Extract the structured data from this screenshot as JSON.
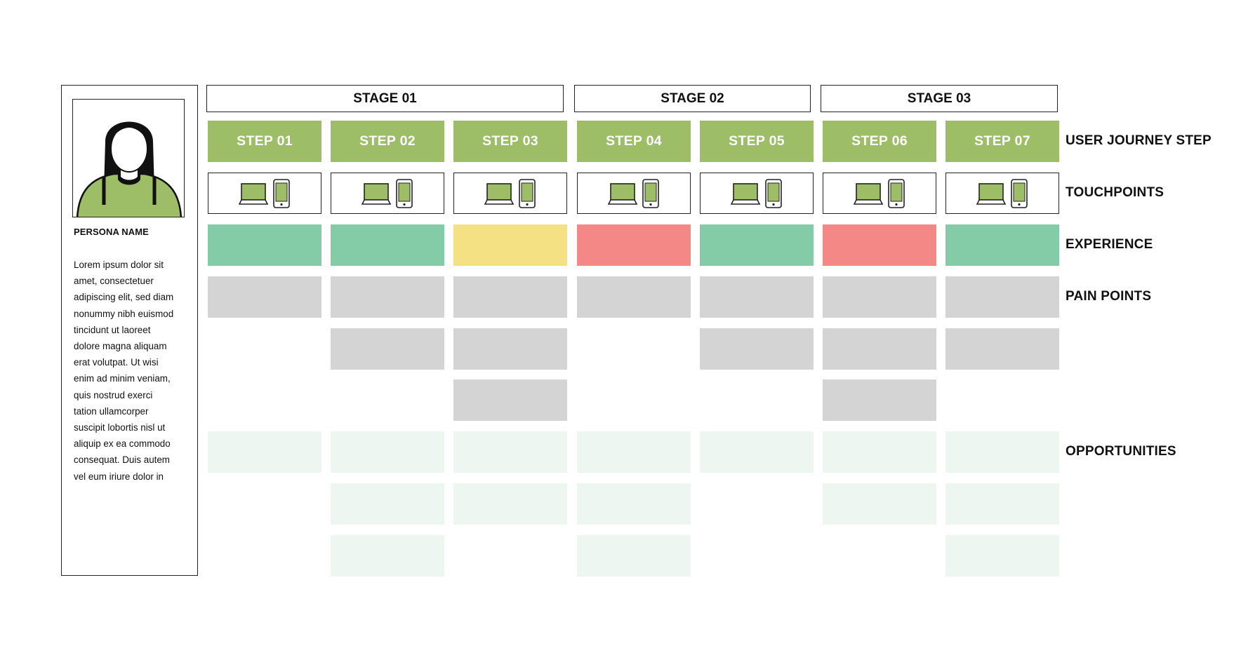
{
  "persona": {
    "name": "PERSONA NAME",
    "description": "Lorem ipsum dolor sit\namet, consectetuer\nadipiscing elit, sed diam\nnonummy nibh euismod\ntincidunt ut laoreet\ndolore magna aliquam\nerat volutpat. Ut wisi\nenim ad minim veniam,\nquis nostrud exerci\ntation ullamcorper\nsuscipit lobortis nisl ut\naliquip ex ea commodo\nconsequat. Duis autem\nvel eum iriure dolor in",
    "avatar_icon": "person-avatar-icon"
  },
  "stages": [
    {
      "label": "STAGE 01",
      "steps": 3
    },
    {
      "label": "STAGE 02",
      "steps": 2
    },
    {
      "label": "STAGE 03",
      "steps": 2
    }
  ],
  "row_labels": {
    "steps": "USER JOURNEY STEP",
    "touchpoints": "TOUCHPOINTS",
    "experience": "EXPERIENCE",
    "pain_points": "PAIN POINTS",
    "opportunities": "OPPORTUNITIES"
  },
  "steps": [
    {
      "label": "STEP 01",
      "touchpoints": [
        "laptop-icon",
        "phone-icon"
      ],
      "experience": "positive",
      "pain_points": 1,
      "opportunities": 1
    },
    {
      "label": "STEP 02",
      "touchpoints": [
        "laptop-icon",
        "phone-icon"
      ],
      "experience": "positive",
      "pain_points": 2,
      "opportunities": 3
    },
    {
      "label": "STEP 03",
      "touchpoints": [
        "laptop-icon",
        "phone-icon"
      ],
      "experience": "neutral",
      "pain_points": 3,
      "opportunities": 2
    },
    {
      "label": "STEP 04",
      "touchpoints": [
        "laptop-icon",
        "phone-icon"
      ],
      "experience": "negative",
      "pain_points": 1,
      "opportunities": 3
    },
    {
      "label": "STEP 05",
      "touchpoints": [
        "laptop-icon",
        "phone-icon"
      ],
      "experience": "positive",
      "pain_points": 2,
      "opportunities": 1
    },
    {
      "label": "STEP 06",
      "touchpoints": [
        "laptop-icon",
        "phone-icon"
      ],
      "experience": "negative",
      "pain_points": 3,
      "opportunities": 2
    },
    {
      "label": "STEP 07",
      "touchpoints": [
        "laptop-icon",
        "phone-icon"
      ],
      "experience": "positive",
      "pain_points": 2,
      "opportunities": 3
    }
  ],
  "colors": {
    "step": "#9dbd67",
    "experience_positive": "#84cba8",
    "experience_neutral": "#f3e183",
    "experience_negative": "#f48886",
    "pain_point": "#d4d4d4",
    "opportunity": "#edf6f0",
    "avatar_shirt": "#9dbd67"
  }
}
